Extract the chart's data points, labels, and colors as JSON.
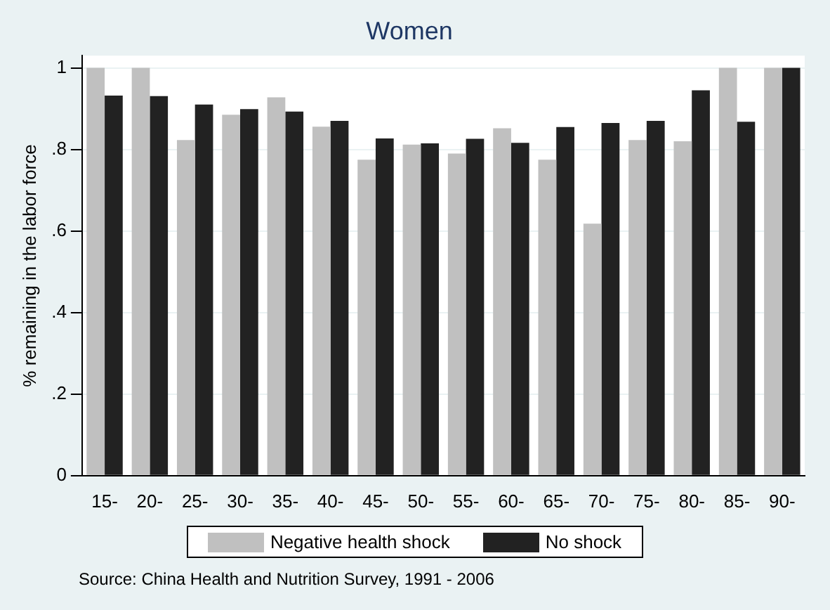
{
  "chart_data": {
    "type": "bar",
    "title": "Women",
    "ylabel": "% remaining in the labor force",
    "categories": [
      "15-",
      "20-",
      "25-",
      "30-",
      "35-",
      "40-",
      "45-",
      "50-",
      "55-",
      "60-",
      "65-",
      "70-",
      "75-",
      "80-",
      "85-",
      "90-"
    ],
    "series": [
      {
        "name": "Negative health shock",
        "color": "#c0c0c0",
        "values": [
          1,
          1,
          0.823,
          0.885,
          0.928,
          0.856,
          0.775,
          0.812,
          0.79,
          0.852,
          0.775,
          0.618,
          0.823,
          0.82,
          1,
          1
        ]
      },
      {
        "name": "No shock",
        "color": "#222222",
        "values": [
          0.932,
          0.931,
          0.91,
          0.899,
          0.893,
          0.87,
          0.827,
          0.815,
          0.826,
          0.816,
          0.855,
          0.865,
          0.87,
          0.945,
          0.868,
          1
        ]
      }
    ],
    "ylim": [
      0,
      1.03
    ],
    "yticks": [
      {
        "value": 0,
        "label": "0"
      },
      {
        "value": 0.2,
        "label": ".2"
      },
      {
        "value": 0.4,
        "label": ".4"
      },
      {
        "value": 0.6,
        "label": ".6"
      },
      {
        "value": 0.8,
        "label": ".8"
      },
      {
        "value": 1,
        "label": "1"
      }
    ],
    "grid": "y",
    "legend": "bottom",
    "annotations": [
      "Source: China Health and Nutrition Survey, 1991 - 2006"
    ]
  }
}
